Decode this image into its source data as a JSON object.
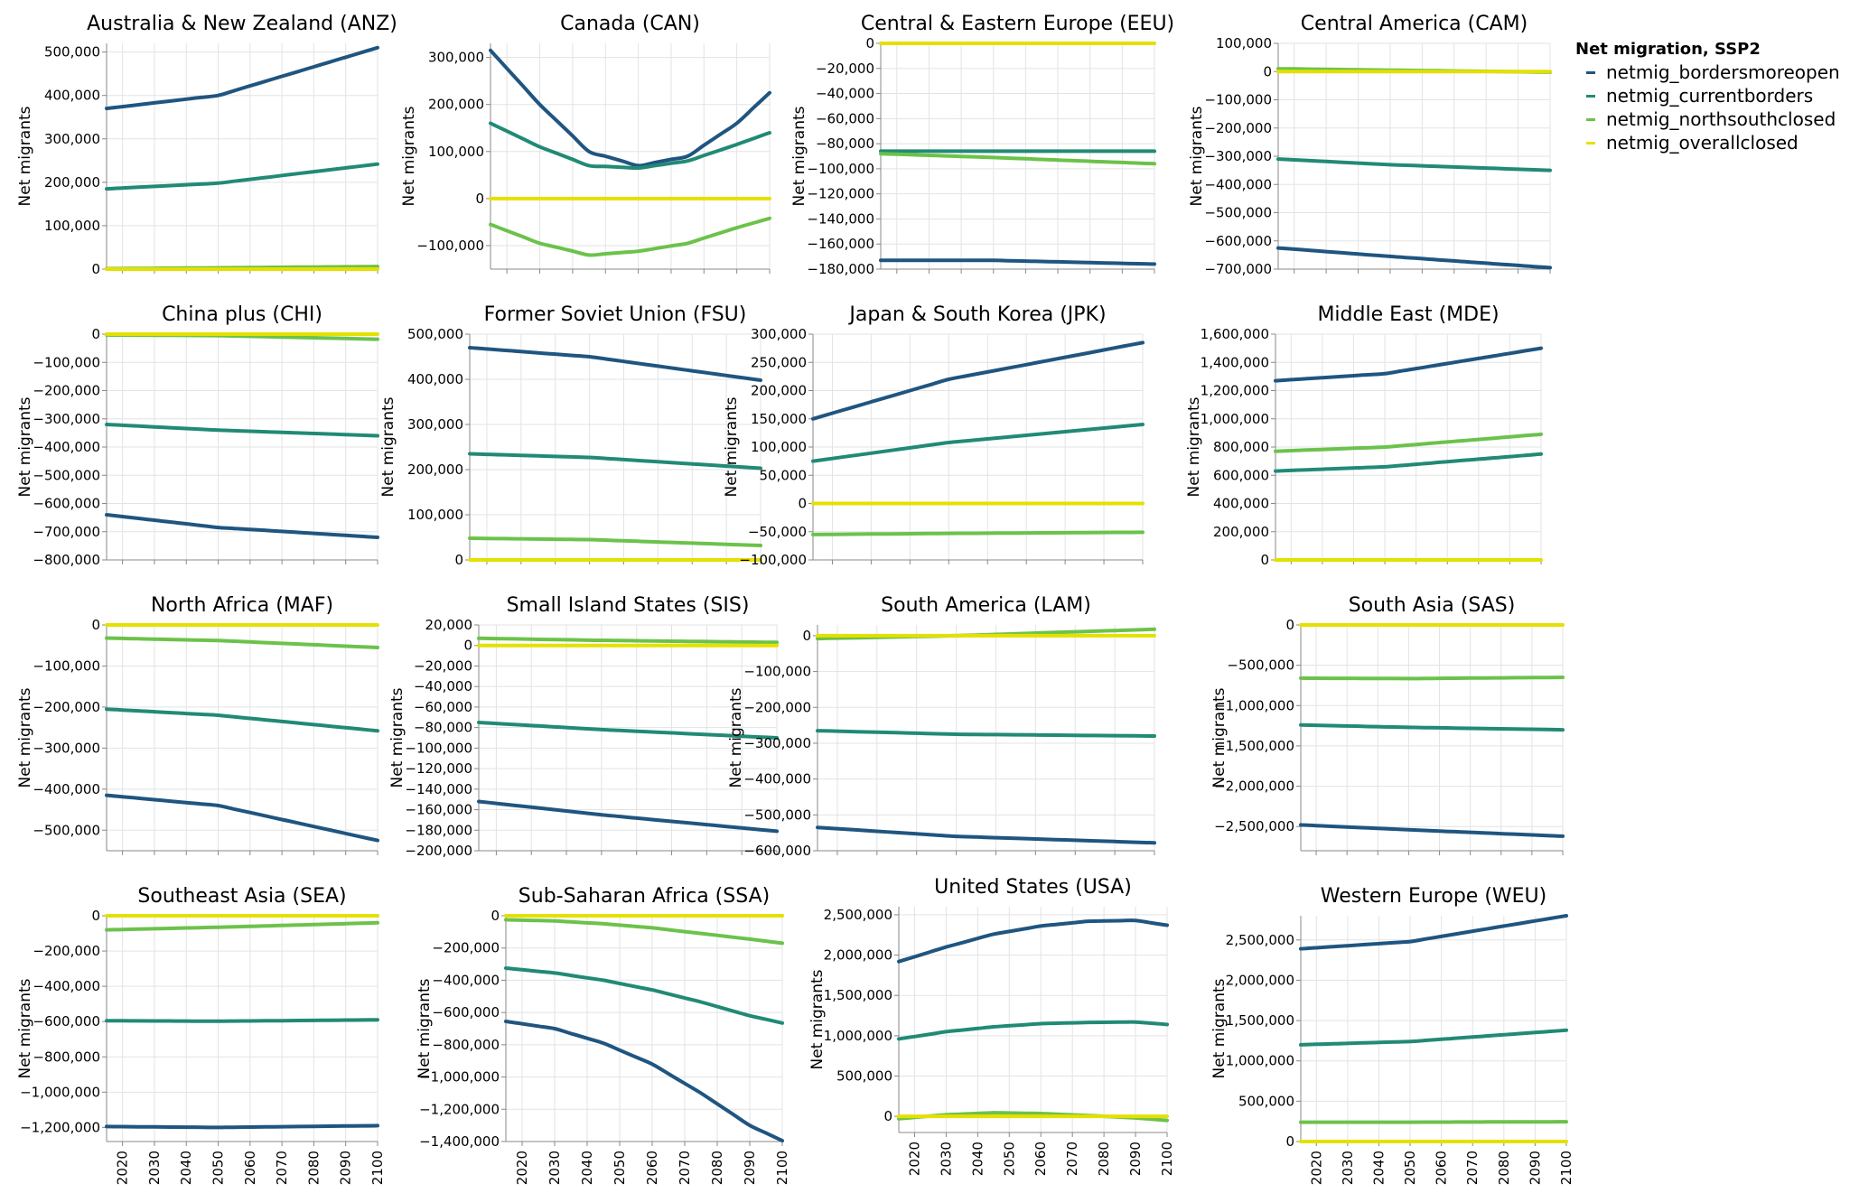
{
  "legend": {
    "title": "Net migration, SSP2",
    "items": [
      {
        "label": "netmig_bordersmoreopen",
        "color": "#1f5580"
      },
      {
        "label": "netmig_currentborders",
        "color": "#218a75"
      },
      {
        "label": "netmig_northsouthclosed",
        "color": "#6cc24a"
      },
      {
        "label": "netmig_overallclosed",
        "color": "#e4e000"
      }
    ]
  },
  "chart_data": [
    {
      "type": "line",
      "title": "Australia & New Zealand (ANZ)",
      "ylabel": "Net migrants",
      "x": [
        2015,
        2050,
        2100
      ],
      "ylim": [
        0,
        520000
      ],
      "yticks": [
        0,
        100000,
        200000,
        300000,
        400000,
        500000
      ],
      "series": [
        {
          "name": "netmig_bordersmoreopen",
          "values": [
            370000,
            400000,
            510000
          ]
        },
        {
          "name": "netmig_currentborders",
          "values": [
            185000,
            198000,
            242000
          ]
        },
        {
          "name": "netmig_northsouthclosed",
          "values": [
            1000,
            3000,
            6000
          ]
        },
        {
          "name": "netmig_overallclosed",
          "values": [
            0,
            0,
            0
          ]
        }
      ]
    },
    {
      "type": "line",
      "title": "Canada (CAN)",
      "ylabel": "Net migrants",
      "x": [
        2015,
        2030,
        2045,
        2060,
        2075,
        2090,
        2100
      ],
      "ylim": [
        -150000,
        330000
      ],
      "yticks": [
        -100000,
        0,
        100000,
        200000,
        300000
      ],
      "series": [
        {
          "name": "netmig_bordersmoreopen",
          "values": [
            315000,
            200000,
            100000,
            70000,
            90000,
            160000,
            225000
          ]
        },
        {
          "name": "netmig_currentborders",
          "values": [
            160000,
            110000,
            70000,
            65000,
            80000,
            115000,
            140000
          ]
        },
        {
          "name": "netmig_northsouthclosed",
          "values": [
            -55000,
            -95000,
            -120000,
            -112000,
            -95000,
            -62000,
            -42000
          ]
        },
        {
          "name": "netmig_overallclosed",
          "values": [
            0,
            0,
            0,
            0,
            0,
            0,
            0
          ]
        }
      ]
    },
    {
      "type": "line",
      "title": "Central & Eastern Europe (EEU)",
      "ylabel": "Net migrants",
      "x": [
        2015,
        2050,
        2100
      ],
      "ylim": [
        -180000,
        0
      ],
      "yticks": [
        0,
        -20000,
        -40000,
        -60000,
        -80000,
        -100000,
        -120000,
        -140000,
        -160000,
        -180000
      ],
      "series": [
        {
          "name": "netmig_bordersmoreopen",
          "values": [
            -173000,
            -173000,
            -176000
          ]
        },
        {
          "name": "netmig_currentborders",
          "values": [
            -86000,
            -86000,
            -86000
          ]
        },
        {
          "name": "netmig_northsouthclosed",
          "values": [
            -88000,
            -91000,
            -96000
          ]
        },
        {
          "name": "netmig_overallclosed",
          "values": [
            0,
            0,
            0
          ]
        }
      ]
    },
    {
      "type": "line",
      "title": "Central America (CAM)",
      "ylabel": "Net migrants",
      "x": [
        2015,
        2050,
        2100
      ],
      "ylim": [
        -700000,
        100000
      ],
      "yticks": [
        100000,
        0,
        -100000,
        -200000,
        -300000,
        -400000,
        -500000,
        -600000,
        -700000
      ],
      "series": [
        {
          "name": "netmig_bordersmoreopen",
          "values": [
            -625000,
            -655000,
            -695000
          ]
        },
        {
          "name": "netmig_currentborders",
          "values": [
            -310000,
            -330000,
            -350000
          ]
        },
        {
          "name": "netmig_northsouthclosed",
          "values": [
            10000,
            5000,
            -2000
          ]
        },
        {
          "name": "netmig_overallclosed",
          "values": [
            0,
            0,
            0
          ]
        }
      ]
    },
    {
      "type": "line",
      "title": "China plus (CHI)",
      "ylabel": "Net migrants",
      "x": [
        2015,
        2050,
        2100
      ],
      "ylim": [
        -800000,
        0
      ],
      "yticks": [
        0,
        -100000,
        -200000,
        -300000,
        -400000,
        -500000,
        -600000,
        -700000,
        -800000
      ],
      "series": [
        {
          "name": "netmig_bordersmoreopen",
          "values": [
            -640000,
            -685000,
            -720000
          ]
        },
        {
          "name": "netmig_currentborders",
          "values": [
            -320000,
            -340000,
            -360000
          ]
        },
        {
          "name": "netmig_northsouthclosed",
          "values": [
            -3000,
            -5000,
            -18000
          ]
        },
        {
          "name": "netmig_overallclosed",
          "values": [
            0,
            0,
            0
          ]
        }
      ]
    },
    {
      "type": "line",
      "title": "Former Soviet Union (FSU)",
      "ylabel": "Net migrants",
      "x": [
        2015,
        2050,
        2100
      ],
      "ylim": [
        0,
        500000
      ],
      "yticks": [
        0,
        100000,
        200000,
        300000,
        400000,
        500000
      ],
      "series": [
        {
          "name": "netmig_bordersmoreopen",
          "values": [
            470000,
            450000,
            398000
          ]
        },
        {
          "name": "netmig_currentborders",
          "values": [
            235000,
            227000,
            203000
          ]
        },
        {
          "name": "netmig_northsouthclosed",
          "values": [
            48000,
            45000,
            32000
          ]
        },
        {
          "name": "netmig_overallclosed",
          "values": [
            0,
            0,
            0
          ]
        }
      ]
    },
    {
      "type": "line",
      "title": "Japan & South Korea (JPK)",
      "ylabel": "Net migrants",
      "x": [
        2015,
        2050,
        2100
      ],
      "ylim": [
        -100000,
        300000
      ],
      "yticks": [
        300000,
        250000,
        200000,
        150000,
        100000,
        50000,
        0,
        -50000,
        -100000
      ],
      "series": [
        {
          "name": "netmig_bordersmoreopen",
          "values": [
            150000,
            220000,
            285000
          ]
        },
        {
          "name": "netmig_currentborders",
          "values": [
            75000,
            108000,
            140000
          ]
        },
        {
          "name": "netmig_northsouthclosed",
          "values": [
            -55000,
            -53000,
            -51000
          ]
        },
        {
          "name": "netmig_overallclosed",
          "values": [
            0,
            0,
            0
          ]
        }
      ]
    },
    {
      "type": "line",
      "title": "Middle East (MDE)",
      "ylabel": "Net migrants",
      "x": [
        2015,
        2050,
        2100
      ],
      "ylim": [
        0,
        1600000
      ],
      "yticks": [
        0,
        200000,
        400000,
        600000,
        800000,
        1000000,
        1200000,
        1400000,
        1600000
      ],
      "series": [
        {
          "name": "netmig_bordersmoreopen",
          "values": [
            1270000,
            1320000,
            1500000
          ]
        },
        {
          "name": "netmig_currentborders",
          "values": [
            630000,
            660000,
            750000
          ]
        },
        {
          "name": "netmig_northsouthclosed",
          "values": [
            770000,
            800000,
            890000
          ]
        },
        {
          "name": "netmig_overallclosed",
          "values": [
            0,
            0,
            0
          ]
        }
      ]
    },
    {
      "type": "line",
      "title": "North Africa (MAF)",
      "ylabel": "Net migrants",
      "x": [
        2015,
        2050,
        2100
      ],
      "ylim": [
        -550000,
        0
      ],
      "yticks": [
        0,
        -100000,
        -200000,
        -300000,
        -400000,
        -500000
      ],
      "series": [
        {
          "name": "netmig_bordersmoreopen",
          "values": [
            -415000,
            -440000,
            -525000
          ]
        },
        {
          "name": "netmig_currentborders",
          "values": [
            -205000,
            -220000,
            -258000
          ]
        },
        {
          "name": "netmig_northsouthclosed",
          "values": [
            -32000,
            -38000,
            -55000
          ]
        },
        {
          "name": "netmig_overallclosed",
          "values": [
            0,
            0,
            0
          ]
        }
      ]
    },
    {
      "type": "line",
      "title": "Small Island States (SIS)",
      "ylabel": "Net migrants",
      "x": [
        2015,
        2050,
        2100
      ],
      "ylim": [
        -200000,
        20000
      ],
      "yticks": [
        20000,
        0,
        -20000,
        -40000,
        -60000,
        -80000,
        -100000,
        -120000,
        -140000,
        -160000,
        -180000,
        -200000
      ],
      "series": [
        {
          "name": "netmig_bordersmoreopen",
          "values": [
            -152000,
            -165000,
            -181000
          ]
        },
        {
          "name": "netmig_currentborders",
          "values": [
            -75000,
            -82000,
            -90000
          ]
        },
        {
          "name": "netmig_northsouthclosed",
          "values": [
            7000,
            5000,
            3000
          ]
        },
        {
          "name": "netmig_overallclosed",
          "values": [
            0,
            0,
            0
          ]
        }
      ]
    },
    {
      "type": "line",
      "title": "South America (LAM)",
      "ylabel": "Net migrants",
      "x": [
        2015,
        2050,
        2100
      ],
      "ylim": [
        -600000,
        30000
      ],
      "yticks": [
        0,
        -100000,
        -200000,
        -300000,
        -400000,
        -500000,
        -600000
      ],
      "series": [
        {
          "name": "netmig_bordersmoreopen",
          "values": [
            -535000,
            -560000,
            -578000
          ]
        },
        {
          "name": "netmig_currentborders",
          "values": [
            -265000,
            -275000,
            -280000
          ]
        },
        {
          "name": "netmig_northsouthclosed",
          "values": [
            -8000,
            0,
            18000
          ]
        },
        {
          "name": "netmig_overallclosed",
          "values": [
            0,
            0,
            0
          ]
        }
      ]
    },
    {
      "type": "line",
      "title": "South Asia (SAS)",
      "ylabel": "Net migrants",
      "x": [
        2015,
        2050,
        2100
      ],
      "ylim": [
        -2800000,
        0
      ],
      "yticks": [
        0,
        -500000,
        -1000000,
        -1500000,
        -2000000,
        -2500000
      ],
      "series": [
        {
          "name": "netmig_bordersmoreopen",
          "values": [
            -2480000,
            -2540000,
            -2620000
          ]
        },
        {
          "name": "netmig_currentborders",
          "values": [
            -1240000,
            -1270000,
            -1300000
          ]
        },
        {
          "name": "netmig_northsouthclosed",
          "values": [
            -660000,
            -665000,
            -650000
          ]
        },
        {
          "name": "netmig_overallclosed",
          "values": [
            0,
            0,
            0
          ]
        }
      ]
    },
    {
      "type": "line",
      "title": "Southeast Asia (SEA)",
      "ylabel": "Net migrants",
      "x": [
        2015,
        2050,
        2100
      ],
      "ylim": [
        -1280000,
        0
      ],
      "yticks": [
        0,
        -200000,
        -400000,
        -600000,
        -800000,
        -1000000,
        -1200000
      ],
      "series": [
        {
          "name": "netmig_bordersmoreopen",
          "values": [
            -1195000,
            -1200000,
            -1190000
          ]
        },
        {
          "name": "netmig_currentborders",
          "values": [
            -595000,
            -598000,
            -590000
          ]
        },
        {
          "name": "netmig_northsouthclosed",
          "values": [
            -80000,
            -65000,
            -40000
          ]
        },
        {
          "name": "netmig_overallclosed",
          "values": [
            0,
            0,
            0
          ]
        }
      ]
    },
    {
      "type": "line",
      "title": "Sub-Saharan Africa (SSA)",
      "ylabel": "Net migrants",
      "x": [
        2015,
        2030,
        2045,
        2060,
        2075,
        2090,
        2100
      ],
      "ylim": [
        -1400000,
        0
      ],
      "yticks": [
        0,
        -200000,
        -400000,
        -600000,
        -800000,
        -1000000,
        -1200000,
        -1400000
      ],
      "series": [
        {
          "name": "netmig_bordersmoreopen",
          "values": [
            -655000,
            -700000,
            -790000,
            -920000,
            -1100000,
            -1300000,
            -1395000
          ]
        },
        {
          "name": "netmig_currentborders",
          "values": [
            -325000,
            -355000,
            -400000,
            -460000,
            -535000,
            -620000,
            -665000
          ]
        },
        {
          "name": "netmig_northsouthclosed",
          "values": [
            -25000,
            -32000,
            -50000,
            -75000,
            -110000,
            -145000,
            -170000
          ]
        },
        {
          "name": "netmig_overallclosed",
          "values": [
            0,
            0,
            0,
            0,
            0,
            0,
            0
          ]
        }
      ]
    },
    {
      "type": "line",
      "title": "United States (USA)",
      "ylabel": "Net migrants",
      "x": [
        2015,
        2030,
        2045,
        2060,
        2075,
        2090,
        2100
      ],
      "ylim": [
        -200000,
        2600000
      ],
      "yticks": [
        0,
        500000,
        1000000,
        1500000,
        2000000,
        2500000
      ],
      "series": [
        {
          "name": "netmig_bordersmoreopen",
          "values": [
            1920000,
            2100000,
            2260000,
            2360000,
            2420000,
            2430000,
            2370000
          ]
        },
        {
          "name": "netmig_currentborders",
          "values": [
            960000,
            1050000,
            1110000,
            1150000,
            1165000,
            1170000,
            1140000
          ]
        },
        {
          "name": "netmig_northsouthclosed",
          "values": [
            -30000,
            20000,
            45000,
            35000,
            10000,
            -20000,
            -50000
          ]
        },
        {
          "name": "netmig_overallclosed",
          "values": [
            0,
            0,
            0,
            0,
            0,
            0,
            0
          ]
        }
      ]
    },
    {
      "type": "line",
      "title": "Western Europe (WEU)",
      "ylabel": "Net migrants",
      "x": [
        2015,
        2050,
        2100
      ],
      "ylim": [
        0,
        2800000
      ],
      "yticks": [
        0,
        500000,
        1000000,
        1500000,
        2000000,
        2500000
      ],
      "series": [
        {
          "name": "netmig_bordersmoreopen",
          "values": [
            2390000,
            2480000,
            2800000
          ]
        },
        {
          "name": "netmig_currentborders",
          "values": [
            1200000,
            1240000,
            1380000
          ]
        },
        {
          "name": "netmig_northsouthclosed",
          "values": [
            240000,
            240000,
            245000
          ]
        },
        {
          "name": "netmig_overallclosed",
          "values": [
            0,
            0,
            0
          ]
        }
      ]
    }
  ],
  "x_axis": {
    "ticks": [
      2020,
      2030,
      2040,
      2050,
      2060,
      2070,
      2080,
      2090,
      2100
    ],
    "xlim": [
      2015,
      2100
    ],
    "show_on_last_row": true
  },
  "grid": true,
  "legend_placement": "right"
}
